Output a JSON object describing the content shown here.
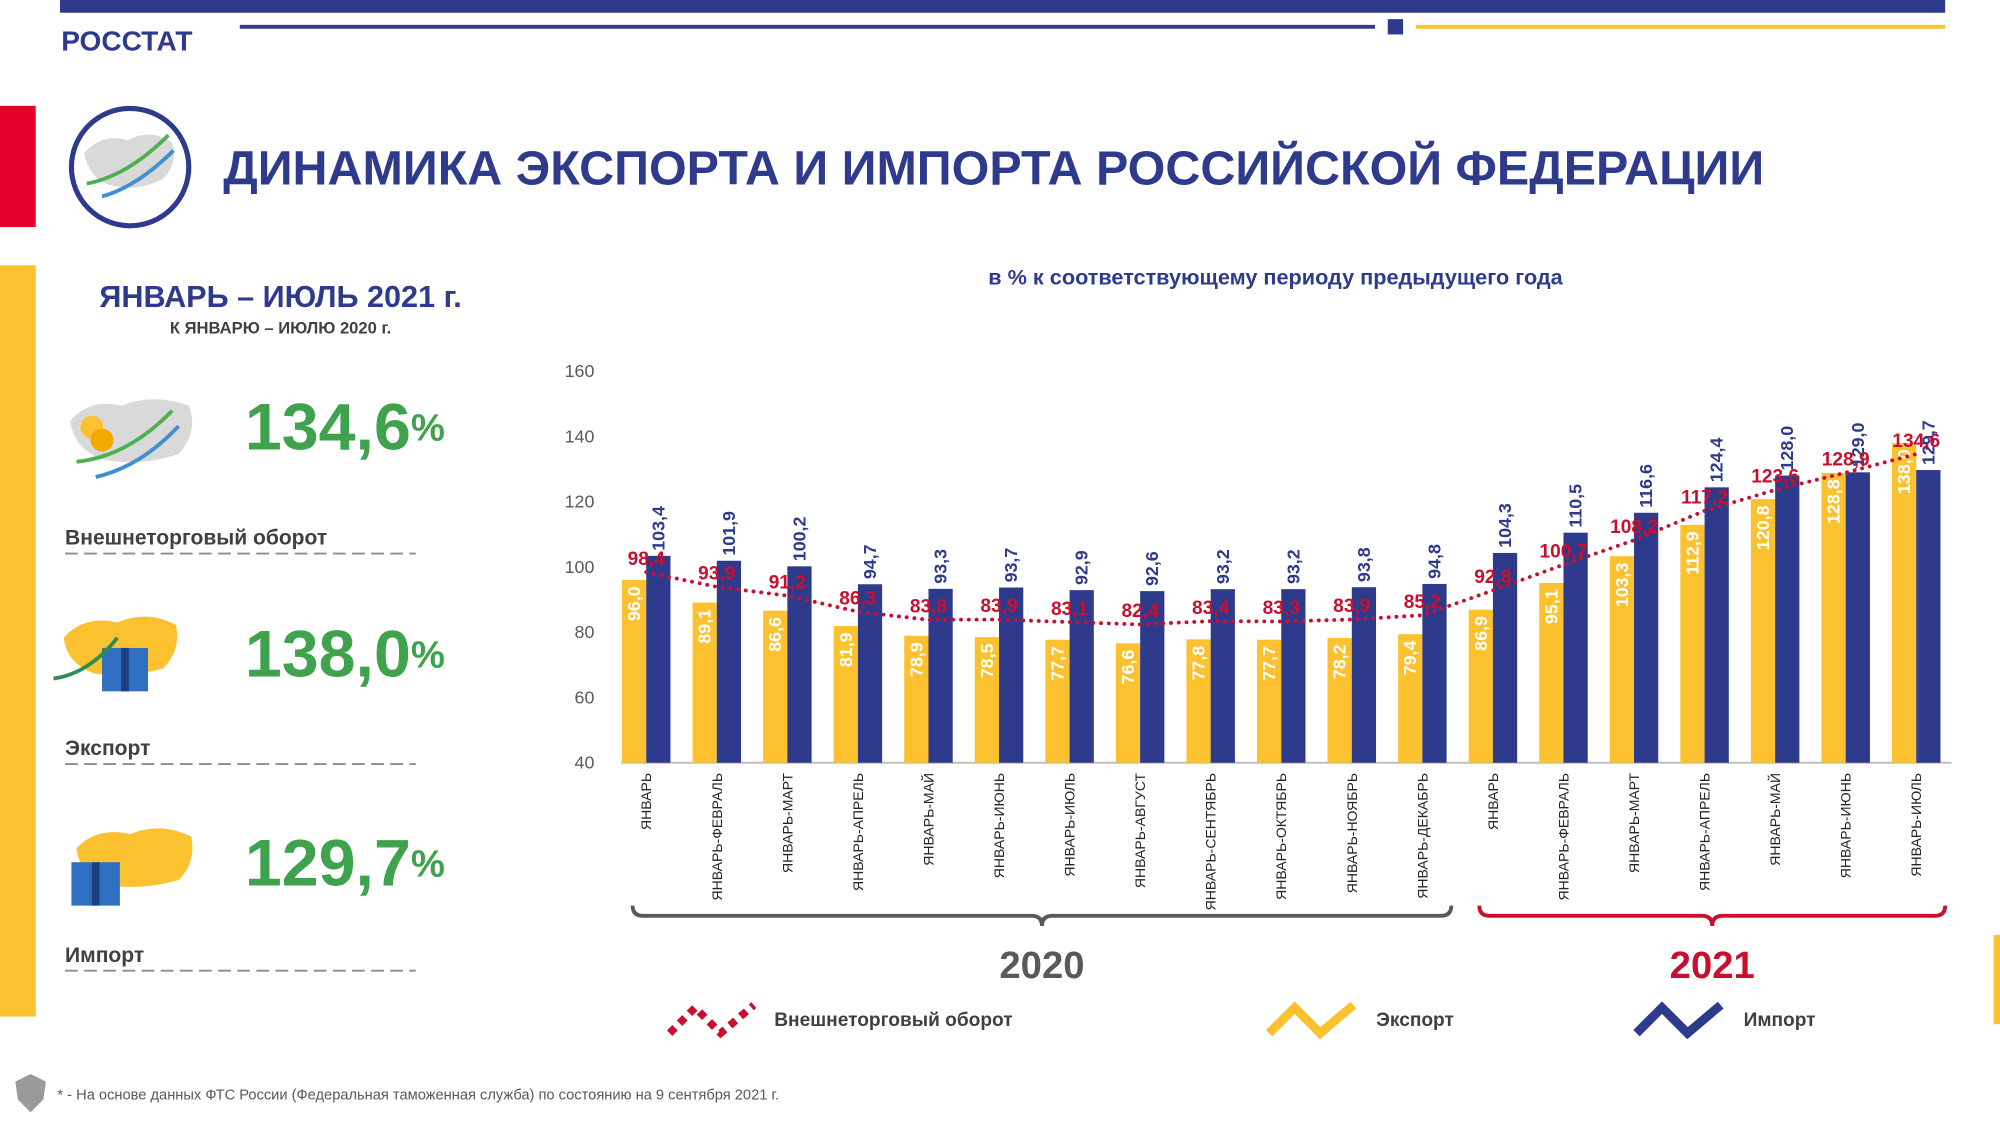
{
  "header": {
    "brand": "РОССТАТ",
    "title": "ДИНАМИКА ЭКСПОРТА И ИМПОРТА РОССИЙСКОЙ ФЕДЕРАЦИИ"
  },
  "summary": {
    "title": "ЯНВАРЬ – ИЮЛЬ 2021 г.",
    "subtitle": "К ЯНВАРЮ – ИЮЛЮ 2020 г.",
    "items": [
      {
        "value": "134,6",
        "unit": "%",
        "label": "Внешнеторговый оборот"
      },
      {
        "value": "138,0",
        "unit": "%",
        "label": "Экспорт"
      },
      {
        "value": "129,7",
        "unit": "%",
        "label": "Импорт"
      }
    ]
  },
  "chart_data": {
    "type": "bar",
    "subtitle": "в % к соответствующему периоду предыдущего года",
    "categories": [
      "ЯНВАРЬ",
      "ЯНВАРЬ-ФЕВРАЛЬ",
      "ЯНВАРЬ-МАРТ",
      "ЯНВАРЬ-АПРЕЛЬ",
      "ЯНВАРЬ-МАЙ",
      "ЯНВАРЬ-ИЮНЬ",
      "ЯНВАРЬ-ИЮЛЬ",
      "ЯНВАРЬ-АВГУСТ",
      "ЯНВАРЬ-СЕНТЯБРЬ",
      "ЯНВАРЬ-ОКТЯБРЬ",
      "ЯНВАРЬ-НОЯБРЬ",
      "ЯНВАРЬ-ДЕКАБРЬ",
      "ЯНВАРЬ",
      "ЯНВАРЬ-ФЕВРАЛЬ",
      "ЯНВАРЬ-МАРТ",
      "ЯНВАРЬ-АПРЕЛЬ",
      "ЯНВАРЬ-МАЙ",
      "ЯНВАРЬ-ИЮНЬ",
      "ЯНВАРЬ-ИЮЛЬ"
    ],
    "groups": [
      "2020",
      "2021"
    ],
    "group_colors": [
      "#595959",
      "#c8102e"
    ],
    "series": [
      {
        "name": "Внешнеторговый оборот",
        "type": "line",
        "color": "#c8102e",
        "values": [
          98.4,
          93.9,
          91.2,
          86.3,
          83.8,
          83.9,
          83.1,
          82.4,
          83.4,
          83.3,
          83.9,
          85.2,
          92.8,
          100.7,
          108.2,
          117.2,
          123.6,
          128.9,
          134.6
        ],
        "value_labels": [
          "98,4",
          "93,9",
          "91,2",
          "86,3",
          "83,8",
          "83,9",
          "83,1",
          "82,4",
          "83,4",
          "83,3",
          "83,9",
          "85,2",
          "92,8",
          "100,7",
          "108,2",
          "117,2",
          "123,6",
          "128,9",
          "134,6"
        ]
      },
      {
        "name": "Экспорт",
        "type": "bar",
        "color": "#fbc12e",
        "values": [
          96.0,
          89.1,
          86.6,
          81.9,
          78.9,
          78.5,
          77.7,
          76.6,
          77.8,
          77.7,
          78.2,
          79.4,
          86.9,
          95.1,
          103.3,
          112.9,
          120.8,
          128.8,
          138.0
        ],
        "value_labels": [
          "96,0",
          "89,1",
          "86,6",
          "81,9",
          "78,9",
          "78,5",
          "77,7",
          "76,6",
          "77,8",
          "77,7",
          "78,2",
          "79,4",
          "86,9",
          "95,1",
          "103,3",
          "112,9",
          "120,8",
          "128,8",
          "138,0"
        ]
      },
      {
        "name": "Импорт",
        "type": "bar",
        "color": "#2e3a8c",
        "values": [
          103.4,
          101.9,
          100.2,
          94.7,
          93.3,
          93.7,
          92.9,
          92.6,
          93.2,
          93.2,
          93.8,
          94.8,
          104.3,
          110.5,
          116.6,
          124.4,
          128.0,
          129.0,
          129.7
        ],
        "value_labels": [
          "103,4",
          "101,9",
          "100,2",
          "94,7",
          "93,3",
          "93,7",
          "92,9",
          "92,6",
          "93,2",
          "93,2",
          "93,8",
          "94,8",
          "104,3",
          "110,5",
          "116,6",
          "124,4",
          "128,0",
          "129,0",
          "129,7"
        ]
      }
    ],
    "ylim": [
      40,
      160
    ],
    "yticks": [
      40,
      60,
      80,
      100,
      120,
      140,
      160
    ],
    "grid": false
  },
  "footnote": "* - На основе данных ФТС России (Федеральная таможенная служба) по состоянию на 9 сентября 2021 г."
}
